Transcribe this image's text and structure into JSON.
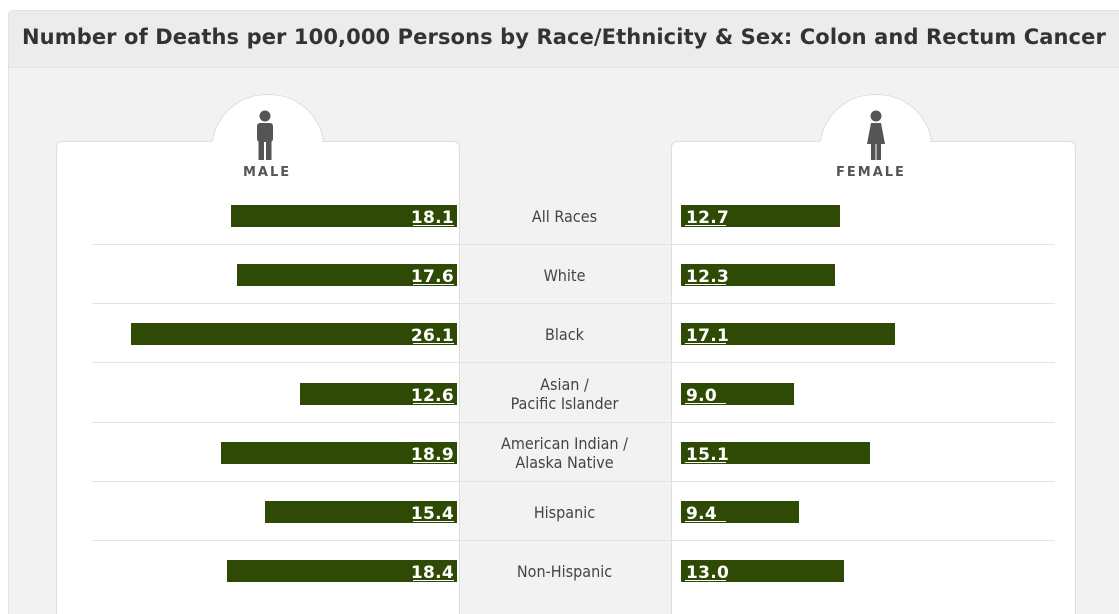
{
  "title": "Number of Deaths per 100,000 Persons by Race/Ethnicity & Sex: Colon and Rectum Cancer",
  "colors": {
    "bar": "#2f4a05",
    "icon": "#555555"
  },
  "male_panel": {
    "label": "MALE",
    "icon": "male-person-icon"
  },
  "female_panel": {
    "label": "FEMALE",
    "icon": "female-person-icon"
  },
  "chart_data": {
    "type": "bar",
    "orientation": "horizontal-butterfly",
    "title": "Number of Deaths per 100,000 Persons by Race/Ethnicity & Sex: Colon and Rectum Cancer",
    "categories": [
      [
        "All Races"
      ],
      [
        "White"
      ],
      [
        "Black"
      ],
      [
        "Asian /",
        "Pacific Islander"
      ],
      [
        "American Indian /",
        "Alaska Native"
      ],
      [
        "Hispanic"
      ],
      [
        "Non-Hispanic"
      ]
    ],
    "series": [
      {
        "name": "MALE",
        "values": [
          18.1,
          17.6,
          26.1,
          12.6,
          18.9,
          15.4,
          18.4
        ],
        "labels": [
          "18.1",
          "17.6",
          "26.1",
          "12.6",
          "18.9",
          "15.4",
          "18.4"
        ]
      },
      {
        "name": "FEMALE",
        "values": [
          12.7,
          12.3,
          17.1,
          9.0,
          15.1,
          9.4,
          13.0
        ],
        "labels": [
          "12.7",
          "12.3",
          "17.1",
          "9.0",
          "15.1",
          "9.4",
          "13.0"
        ]
      }
    ]
  }
}
